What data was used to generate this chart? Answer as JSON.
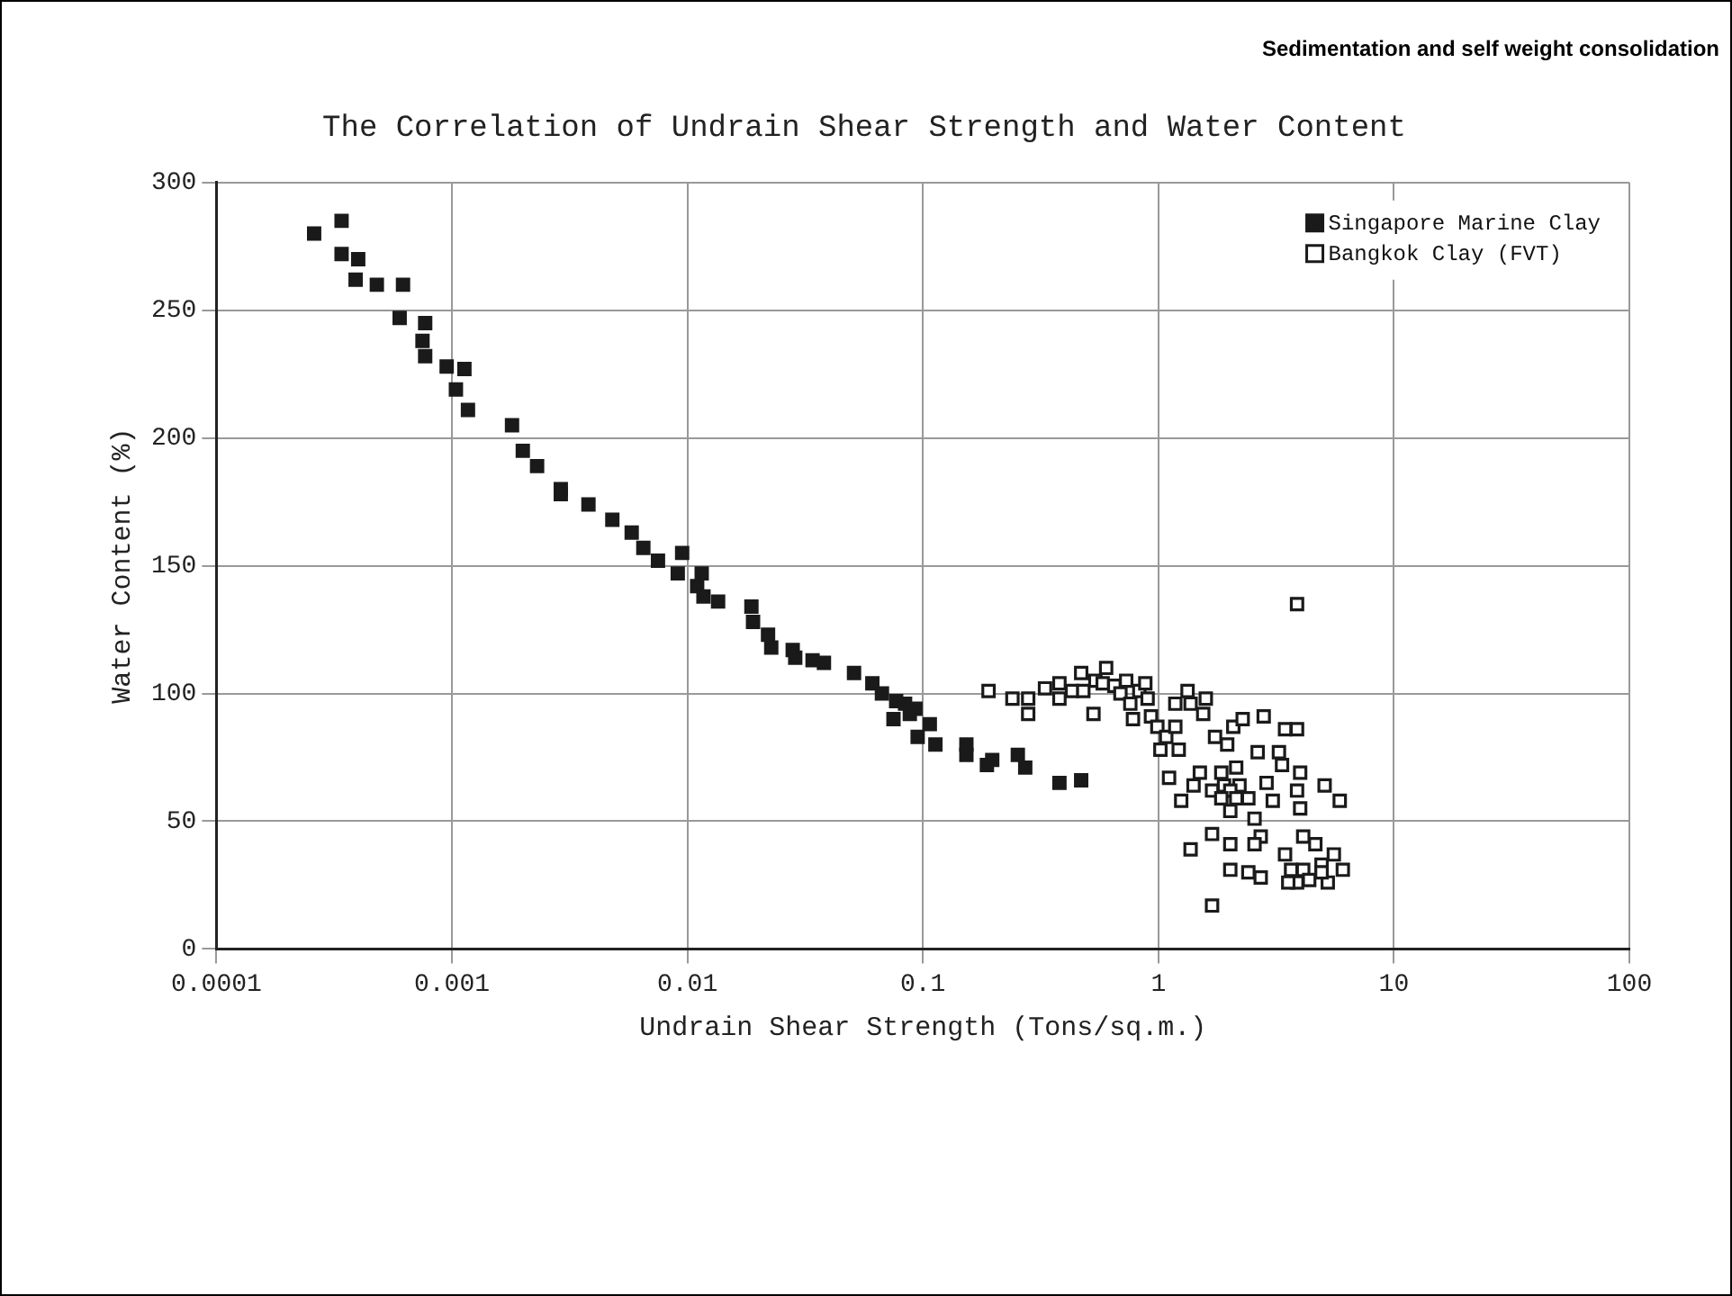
{
  "chart_data": {
    "type": "scatter",
    "title": "The Correlation of Undrain Shear Strength and Water Content",
    "xlabel": "Undrain Shear Strength (Tons/sq.m.)",
    "ylabel": "Water Content (%)",
    "annotations": [
      "Sedimentation and self weight consolidation"
    ],
    "log": "x",
    "xlim": [
      0.0001,
      100
    ],
    "xticks": [
      0.0001,
      0.001,
      0.01,
      0.1,
      1,
      10,
      100
    ],
    "ylim": [
      0,
      300
    ],
    "yticks": [
      0,
      50,
      100,
      150,
      200,
      250,
      300
    ],
    "grid": true,
    "legend": "top right",
    "marker": "square",
    "series": [
      {
        "name": "Singapore Marine Clay",
        "color": "#1a1a1a",
        "x": [
          0.00026,
          0.00034,
          0.00034,
          0.00039,
          0.0004,
          0.00048,
          0.0006,
          0.00062,
          0.00075,
          0.00077,
          0.00077,
          0.00095,
          0.00104,
          0.00113,
          0.00117,
          0.0018,
          0.002,
          0.0023,
          0.0029,
          0.0029,
          0.0038,
          0.0048,
          0.0058,
          0.0065,
          0.0075,
          0.0091,
          0.0095,
          0.011,
          0.0115,
          0.0117,
          0.0135,
          0.0187,
          0.019,
          0.022,
          0.0227,
          0.028,
          0.0287,
          0.034,
          0.038,
          0.051,
          0.061,
          0.067,
          0.077,
          0.084,
          0.088,
          0.093,
          0.075,
          0.095,
          0.107,
          0.113,
          0.153,
          0.153,
          0.187,
          0.197,
          0.253,
          0.272,
          0.38,
          0.47
        ],
        "values": [
          280,
          272,
          285,
          262,
          270,
          260,
          247,
          260,
          238,
          245,
          232,
          228,
          219,
          227,
          211,
          205,
          195,
          189,
          180,
          178,
          174,
          168,
          163,
          157,
          152,
          147,
          155,
          142,
          147,
          138,
          136,
          134,
          128,
          123,
          118,
          117,
          114,
          113,
          112,
          108,
          104,
          100,
          97,
          96,
          92,
          94,
          90,
          83,
          88,
          80,
          80,
          76,
          72,
          74,
          76,
          71,
          65,
          66
        ]
      },
      {
        "name": "Bangkok Clay (FVT)",
        "color": "#1a1a1a",
        "x": [
          0.19,
          0.24,
          0.28,
          0.28,
          0.33,
          0.38,
          0.38,
          0.43,
          0.47,
          0.48,
          0.53,
          0.54,
          0.6,
          0.58,
          0.65,
          0.69,
          0.73,
          0.76,
          0.78,
          0.83,
          0.88,
          0.9,
          0.93,
          0.99,
          1.02,
          1.08,
          1.11,
          1.18,
          1.18,
          1.22,
          1.25,
          1.33,
          1.37,
          1.41,
          1.5,
          1.55,
          1.59,
          1.69,
          1.74,
          1.85,
          1.96,
          2.02,
          2.08,
          2.14,
          2.21,
          2.28,
          2.41,
          2.56,
          2.64,
          2.72,
          2.8,
          2.88,
          3.06,
          3.25,
          3.35,
          3.45,
          3.88,
          4,
          3.88,
          4,
          4.12,
          4.64,
          4.93,
          5.08,
          5.56,
          5.89,
          6.07,
          3.88,
          1.37,
          1.69,
          2.02,
          2.56,
          2.02,
          2.41,
          2.72,
          1.69,
          3.45,
          3.66,
          4.12,
          4.37,
          5.24,
          3.88,
          3.56,
          4.93,
          1.9,
          2.02,
          1.85,
          2.14
        ],
        "values": [
          101,
          98,
          98,
          92,
          102,
          104,
          98,
          101,
          108,
          101,
          92,
          105,
          110,
          104,
          103,
          100,
          105,
          96,
          90,
          101,
          104,
          98,
          91,
          87,
          78,
          83,
          67,
          96,
          87,
          78,
          58,
          101,
          96,
          64,
          69,
          92,
          98,
          62,
          83,
          69,
          80,
          54,
          87,
          71,
          64,
          90,
          59,
          51,
          77,
          44,
          91,
          65,
          58,
          77,
          72,
          86,
          86,
          69,
          62,
          55,
          44,
          41,
          33,
          64,
          37,
          58,
          31,
          135,
          39,
          45,
          41,
          41,
          31,
          30,
          28,
          17,
          37,
          31,
          31,
          27,
          26,
          26,
          26,
          30,
          64,
          62,
          59,
          59
        ]
      }
    ]
  }
}
